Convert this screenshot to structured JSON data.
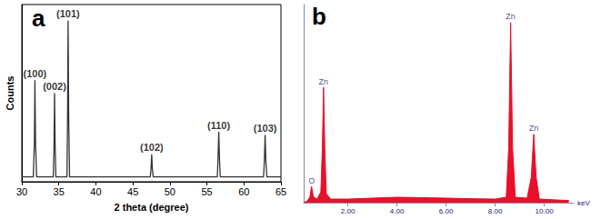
{
  "chart_data": [
    {
      "type": "line",
      "title": "a",
      "x_label": "2 theta (degree)",
      "y_label": "Counts",
      "x": [
        30,
        31.55,
        31.7,
        31.77,
        31.85,
        32.0,
        34.25,
        34.35,
        34.42,
        34.5,
        34.6,
        36.1,
        36.18,
        36.25,
        36.33,
        36.45,
        47.35,
        47.45,
        47.54,
        47.63,
        47.75,
        56.4,
        56.5,
        56.6,
        56.7,
        56.8,
        62.65,
        62.76,
        62.86,
        62.96,
        63.1,
        65
      ],
      "values": [
        3,
        3,
        25,
        63,
        25,
        3,
        3,
        22,
        55,
        22,
        3,
        3,
        40,
        100,
        40,
        3,
        3,
        8,
        17,
        8,
        3,
        3,
        14,
        31,
        14,
        3,
        3,
        13,
        29,
        13,
        3,
        3
      ],
      "color": "#333333",
      "xlim": [
        30,
        65
      ],
      "xticks": [
        30,
        35,
        40,
        45,
        50,
        55,
        60,
        65
      ],
      "ylim": [
        0,
        110
      ],
      "tick_labels": "x",
      "grid": false,
      "annotations": [
        {
          "text": "(100)",
          "x": 31.77,
          "y": 63
        },
        {
          "text": "(002)",
          "x": 34.42,
          "y": 55
        },
        {
          "text": "(101)",
          "x": 36.25,
          "y": 100
        },
        {
          "text": "(102)",
          "x": 47.54,
          "y": 17
        },
        {
          "text": "(110)",
          "x": 56.6,
          "y": 31
        },
        {
          "text": "(103)",
          "x": 62.86,
          "y": 29
        }
      ]
    },
    {
      "type": "area",
      "title": "b",
      "x_label": "keV",
      "x": [
        0.2,
        0.35,
        0.45,
        0.52,
        0.6,
        0.75,
        0.9,
        0.96,
        1.01,
        1.06,
        1.12,
        1.3,
        2.0,
        3.0,
        4.0,
        5.0,
        6.0,
        7.0,
        8.0,
        8.45,
        8.55,
        8.63,
        8.71,
        8.82,
        9.3,
        9.47,
        9.57,
        9.67,
        9.8,
        10.5,
        11.0
      ],
      "values": [
        0,
        1,
        3,
        9,
        3,
        2,
        6,
        30,
        64,
        30,
        5,
        2,
        2,
        2.5,
        3,
        2.8,
        2.5,
        2.2,
        2,
        3,
        30,
        100,
        30,
        3,
        2.5,
        14,
        38,
        14,
        2,
        1.5,
        1.2
      ],
      "color": "#e8102a",
      "xlim": [
        0.2,
        11.2
      ],
      "xticks": [
        {
          "value": 2,
          "label": "2.00"
        },
        {
          "value": 4,
          "label": "4.00"
        },
        {
          "value": 6,
          "label": "6.00"
        },
        {
          "value": 8,
          "label": "8.00"
        },
        {
          "value": 10,
          "label": "10.00"
        }
      ],
      "ylim": [
        0,
        110
      ],
      "tick_labels": "x",
      "grid": false,
      "annotations": [
        {
          "text": "O",
          "x": 0.52,
          "y": 9
        },
        {
          "text": "Zn",
          "x": 1.01,
          "y": 64
        },
        {
          "text": "Zn",
          "x": 8.63,
          "y": 100
        },
        {
          "text": "Zn",
          "x": 9.57,
          "y": 38
        }
      ]
    }
  ]
}
